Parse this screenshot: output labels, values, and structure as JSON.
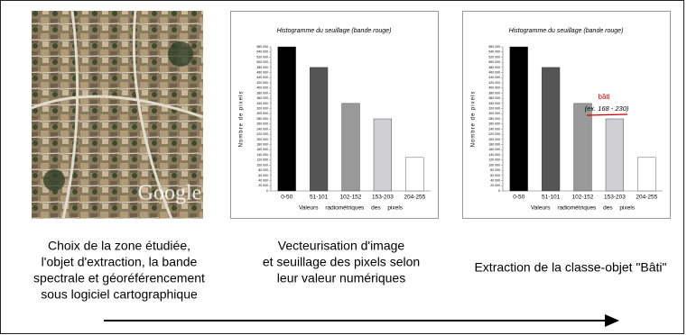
{
  "chart_data": [
    {
      "type": "bar",
      "title": "Histogramme du seuillage (bande rouge)",
      "y_label": "Nombre de pixels",
      "x_label": "Valeurs radiométriques des pixels",
      "categories": [
        "0-50",
        "51-101",
        "102-152",
        "153-203",
        "204-255"
      ],
      "values": [
        560000,
        480000,
        340000,
        280000,
        130000
      ],
      "colors": [
        "#000000",
        "#555555",
        "#999999",
        "#cfcfd3",
        "#ffffff"
      ],
      "ylim": [
        0,
        560000
      ],
      "yticks": [
        0,
        {
          "value": 20000,
          "label": "20 000"
        },
        {
          "value": 40000,
          "label": "40 000"
        },
        {
          "value": 60000,
          "label": "60 000"
        },
        {
          "value": 80000,
          "label": "80 000"
        },
        {
          "value": 100000,
          "label": "100 000"
        },
        {
          "value": 120000,
          "label": "120 000"
        },
        {
          "value": 140000,
          "label": "140 000"
        },
        {
          "value": 160000,
          "label": "160 000"
        },
        {
          "value": 180000,
          "label": "180 000"
        },
        {
          "value": 200000,
          "label": "200 000"
        },
        {
          "value": 220000,
          "label": "220 000"
        },
        {
          "value": 240000,
          "label": "240 000"
        },
        {
          "value": 260000,
          "label": "260 000"
        },
        {
          "value": 280000,
          "label": "280 000"
        },
        {
          "value": 300000,
          "label": "300 000"
        },
        {
          "value": 320000,
          "label": "320 000"
        },
        {
          "value": 340000,
          "label": "340 000"
        },
        {
          "value": 360000,
          "label": "360 000"
        },
        {
          "value": 380000,
          "label": "380 000"
        },
        {
          "value": 400000,
          "label": "400 000"
        },
        {
          "value": 420000,
          "label": "420 000"
        },
        {
          "value": 440000,
          "label": "440 000"
        },
        {
          "value": 460000,
          "label": "460 000"
        },
        {
          "value": 480000,
          "label": "480 000"
        },
        {
          "value": 500000,
          "label": "500 000"
        },
        {
          "value": 520000,
          "label": "520 000"
        },
        {
          "value": 540000,
          "label": "540 000"
        },
        {
          "value": 560000,
          "label": "560 000"
        }
      ]
    },
    {
      "type": "bar",
      "title": "Histogramme du seuillage (bande rouge)",
      "y_label": "Nombre de pixels",
      "x_label": "Valeurs radiométriques des pixels",
      "categories": [
        "0-50",
        "51-101",
        "102-152",
        "153-203",
        "204-255"
      ],
      "values": [
        560000,
        480000,
        340000,
        280000,
        130000
      ],
      "colors": [
        "#000000",
        "#555555",
        "#999999",
        "#cfcfd3",
        "#ffffff"
      ],
      "annotations": [
        "bâti",
        "(ex. 168 - 230)"
      ],
      "ylim": [
        0,
        560000
      ],
      "yticks": [
        0,
        {
          "value": 20000,
          "label": "20 000"
        },
        {
          "value": 40000,
          "label": "40 000"
        },
        {
          "value": 60000,
          "label": "60 000"
        },
        {
          "value": 80000,
          "label": "80 000"
        },
        {
          "value": 100000,
          "label": "100 000"
        },
        {
          "value": 120000,
          "label": "120 000"
        },
        {
          "value": 140000,
          "label": "140 000"
        },
        {
          "value": 160000,
          "label": "160 000"
        },
        {
          "value": 180000,
          "label": "180 000"
        },
        {
          "value": 200000,
          "label": "200 000"
        },
        {
          "value": 220000,
          "label": "220 000"
        },
        {
          "value": 240000,
          "label": "240 000"
        },
        {
          "value": 260000,
          "label": "260 000"
        },
        {
          "value": 280000,
          "label": "280 000"
        },
        {
          "value": 300000,
          "label": "300 000"
        },
        {
          "value": 320000,
          "label": "320 000"
        },
        {
          "value": 340000,
          "label": "340 000"
        },
        {
          "value": 360000,
          "label": "360 000"
        },
        {
          "value": 380000,
          "label": "380 000"
        },
        {
          "value": 400000,
          "label": "400 000"
        },
        {
          "value": 420000,
          "label": "420 000"
        },
        {
          "value": 440000,
          "label": "440 000"
        },
        {
          "value": 460000,
          "label": "460 000"
        },
        {
          "value": 480000,
          "label": "480 000"
        },
        {
          "value": 500000,
          "label": "500 000"
        },
        {
          "value": 520000,
          "label": "520 000"
        },
        {
          "value": 540000,
          "label": "540 000"
        },
        {
          "value": 560000,
          "label": "560 000"
        }
      ]
    }
  ],
  "photo_watermark": "Google",
  "captions": [
    [
      "Choix de la zone étudiée,",
      "l'objet d'extraction, la bande",
      "spectrale et géoréférencement",
      "sous logiciel cartographique"
    ],
    [
      "Vecteurisation d'image",
      "et seuillage des pixels selon",
      "leur valeur numériques"
    ],
    [
      "Extraction de la classe-objet \"Bâti\""
    ]
  ]
}
